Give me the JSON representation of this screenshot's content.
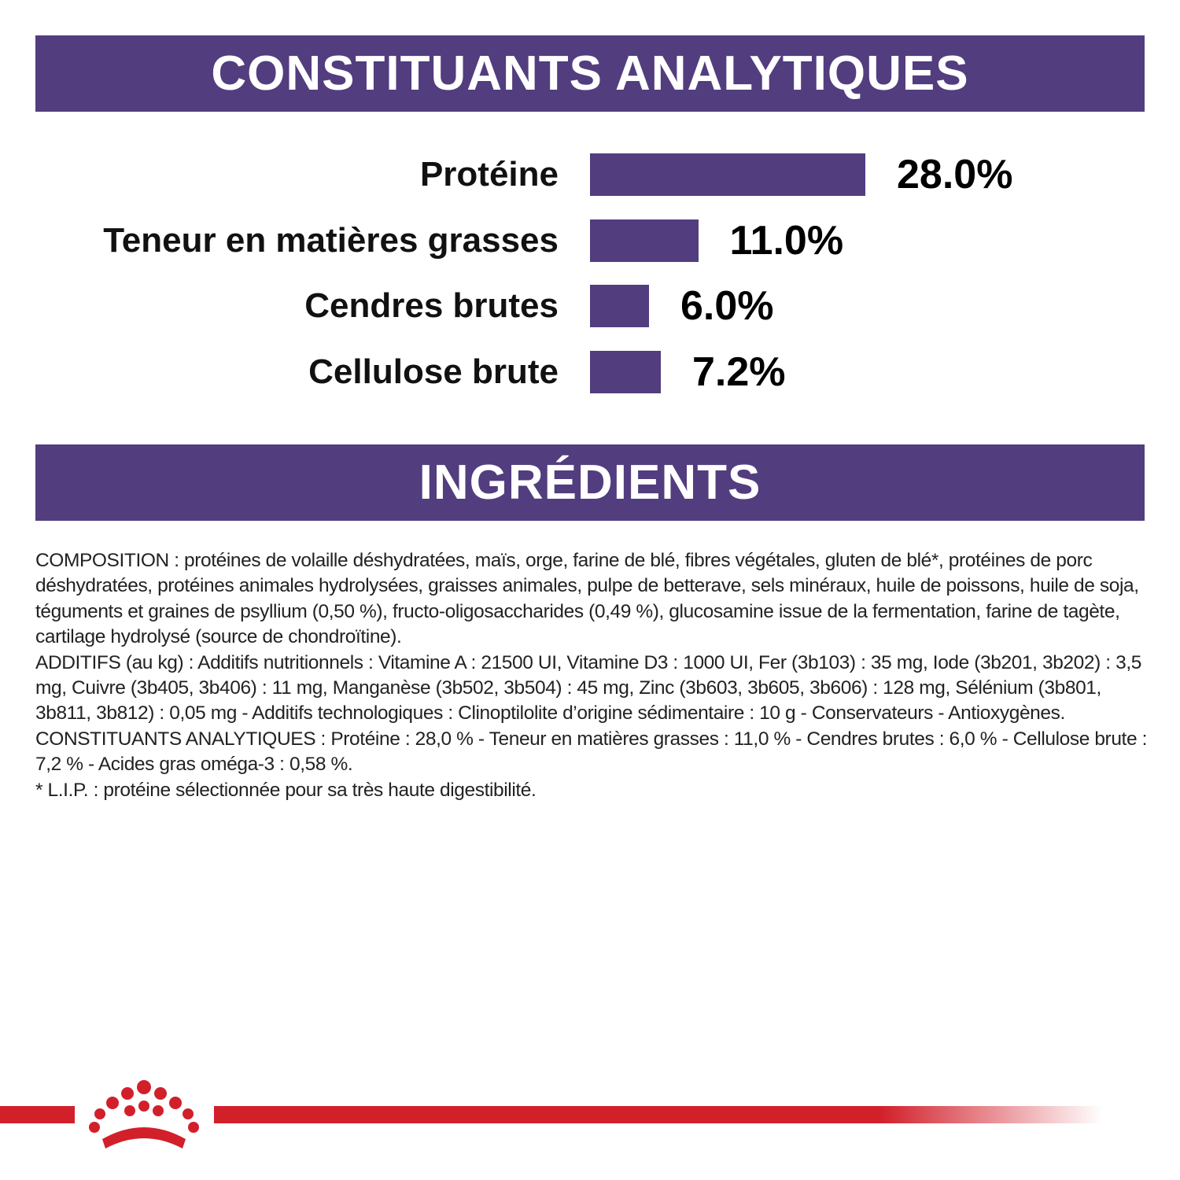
{
  "chart_data": {
    "type": "bar",
    "orientation": "horizontal",
    "title": "CONSTITUANTS ANALYTIQUES",
    "categories": [
      "Protéine",
      "Teneur en matières grasses",
      "Cendres brutes",
      "Cellulose brute"
    ],
    "values": [
      28.0,
      11.0,
      6.0,
      7.2
    ],
    "value_labels": [
      "28.0%",
      "11.0%",
      "6.0%",
      "7.2%"
    ],
    "color": "#523d7f"
  },
  "ingredients": {
    "title": "INGRÉDIENTS",
    "paragraphs": [
      "COMPOSITION : protéines de volaille déshydratées, maïs, orge, farine de blé, fibres végétales, gluten de blé*, protéines de porc déshydratées, protéines animales hydrolysées, graisses animales, pulpe de betterave, sels minéraux, huile de poissons, huile de soja, téguments et graines de psyllium (0,50 %), fructo-oligosaccharides (0,49 %), glucosamine issue de la fermentation, farine de tagète, cartilage hydrolysé (source de chondroïtine).",
      "ADDITIFS (au kg) : Additifs nutritionnels : Vitamine A : 21500 UI, Vitamine D3 : 1000 UI, Fer (3b103) : 35 mg, Iode (3b201, 3b202) : 3,5 mg, Cuivre (3b405, 3b406) : 11 mg, Manganèse (3b502, 3b504) : 45 mg, Zinc (3b603, 3b605, 3b606) : 128 mg, Sélénium (3b801, 3b811, 3b812) : 0,05 mg - Additifs technologiques : Clinoptilolite d’origine sédimentaire : 10 g - Conservateurs - Antioxygènes.",
      "CONSTITUANTS ANALYTIQUES : Protéine : 28,0 % - Teneur en matières grasses : 11,0 % - Cendres brutes : 6,0 % - Cellulose brute : 7,2 % - Acides gras oméga-3 : 0,58 %.",
      "* L.I.P. : protéine sélectionnée pour sa très haute digestibilité."
    ]
  }
}
